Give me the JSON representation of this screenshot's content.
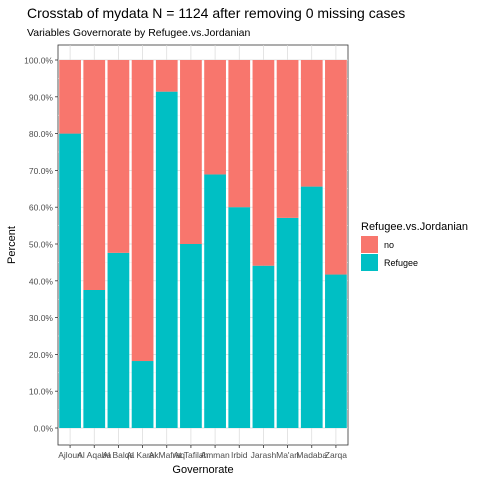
{
  "chart_data": {
    "type": "bar",
    "stacked": true,
    "title": "Crosstab of mydata N = 1124 after removing 0 missing cases",
    "subtitle": "Variables Governorate by Refugee.vs.Jordanian",
    "xlabel": "Governorate",
    "ylabel": "Percent",
    "ylim": [
      0,
      100
    ],
    "y_ticks": [
      "0.0%",
      "10.0%",
      "20.0%",
      "30.0%",
      "40.0%",
      "50.0%",
      "60.0%",
      "70.0%",
      "80.0%",
      "90.0%",
      "100.0%"
    ],
    "grid": true,
    "legend": {
      "title": "Refugee.vs.Jordanian",
      "placement": "right",
      "entries": [
        "no",
        "Refugee"
      ]
    },
    "categories": [
      "Ajloun",
      "Al Aqaba",
      "Al Balqa",
      "Al Karak",
      "Al Mafraq",
      "At Tafilah",
      "Amman",
      "Irbid",
      "Jarash",
      "Ma'an",
      "Madaba",
      "Zarqa"
    ],
    "series": [
      {
        "name": "Refugee",
        "color": "#00BFC4",
        "values": [
          80.0,
          37.5,
          47.6,
          18.2,
          91.4,
          50.0,
          68.9,
          60.0,
          44.1,
          57.1,
          65.6,
          41.7
        ]
      },
      {
        "name": "no",
        "color": "#F8766D",
        "values": [
          20.0,
          62.5,
          52.4,
          81.8,
          8.6,
          50.0,
          31.1,
          40.0,
          55.9,
          42.9,
          34.4,
          58.3
        ]
      }
    ]
  }
}
